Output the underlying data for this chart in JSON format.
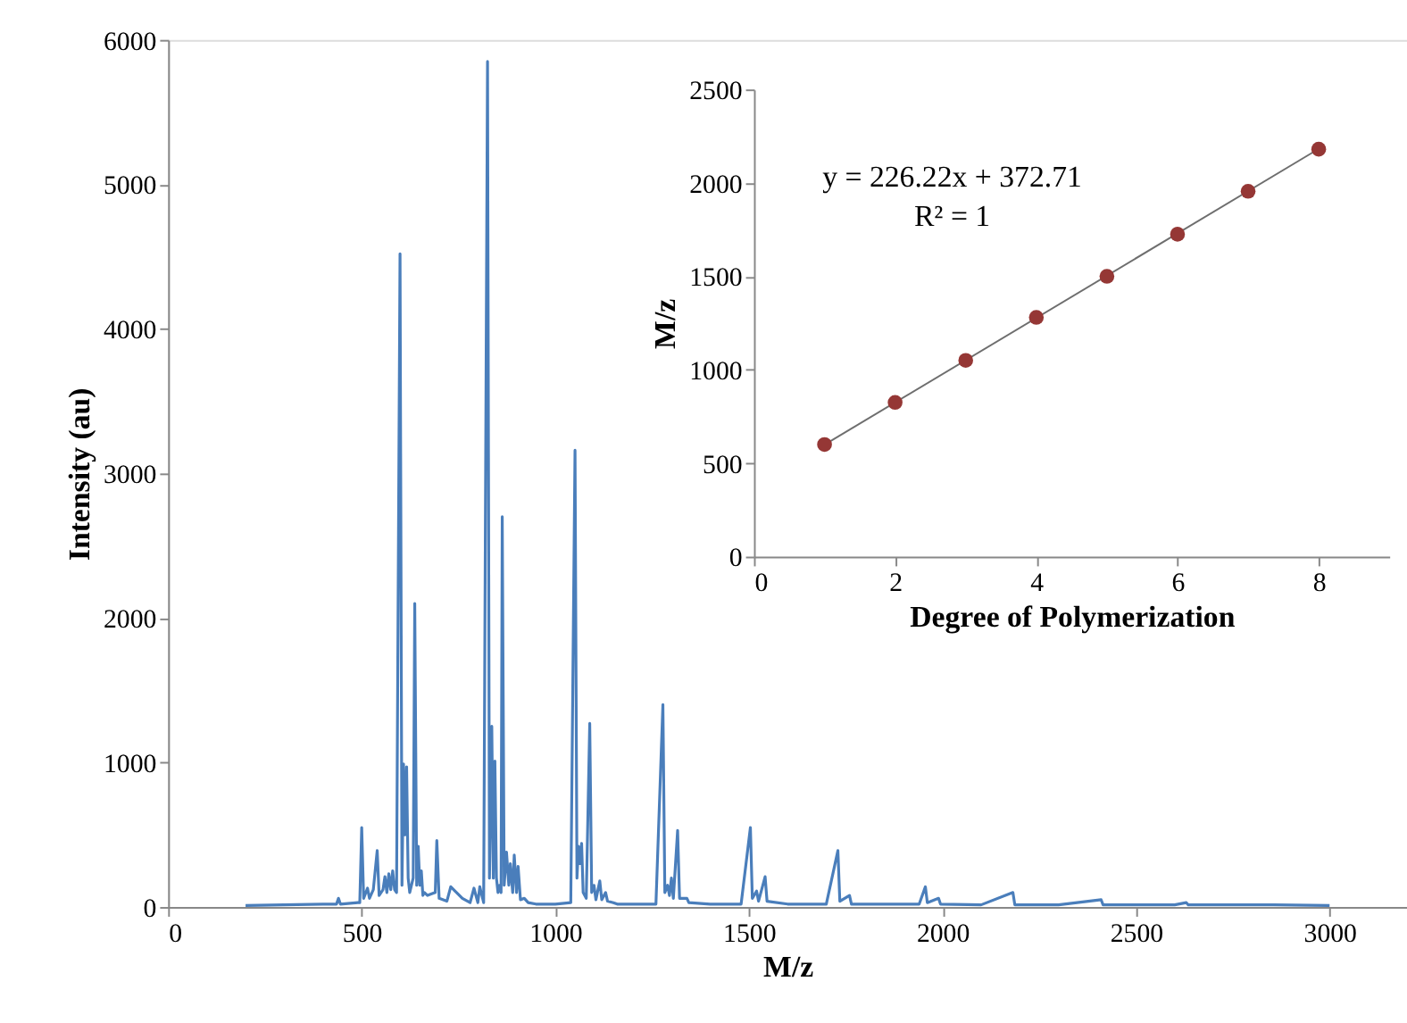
{
  "chart_data": [
    {
      "type": "line",
      "xlabel": "M/z",
      "ylabel": "Intensity (au)",
      "xlim": [
        0,
        3200
      ],
      "xticks": [
        0,
        500,
        1000,
        1500,
        2000,
        2500,
        3000
      ],
      "ylim": [
        0,
        6000
      ],
      "yticks": [
        0,
        1000,
        2000,
        3000,
        4000,
        5000,
        6000
      ],
      "grid": false,
      "line_style": "solid",
      "series": [
        {
          "color": "#4a7ebb",
          "x": [
            200,
            300,
            400,
            435,
            440,
            445,
            490,
            495,
            500,
            505,
            515,
            520,
            530,
            540,
            545,
            555,
            560,
            565,
            570,
            575,
            580,
            585,
            590,
            599,
            604,
            608,
            612,
            616,
            620,
            624,
            633,
            637,
            642,
            646,
            650,
            654,
            658,
            662,
            670,
            690,
            694,
            700,
            720,
            730,
            745,
            760,
            780,
            790,
            800,
            805,
            815,
            825,
            830,
            836,
            840,
            844,
            848,
            852,
            856,
            860,
            863,
            868,
            874,
            880,
            884,
            890,
            894,
            900,
            904,
            910,
            920,
            930,
            950,
            980,
            1000,
            1040,
            1051,
            1056,
            1060,
            1064,
            1068,
            1072,
            1080,
            1089,
            1094,
            1100,
            1105,
            1115,
            1120,
            1130,
            1135,
            1150,
            1160,
            1200,
            1260,
            1278,
            1283,
            1290,
            1295,
            1300,
            1305,
            1316,
            1321,
            1340,
            1345,
            1400,
            1480,
            1504,
            1509,
            1520,
            1525,
            1542,
            1547,
            1600,
            1700,
            1730,
            1735,
            1760,
            1765,
            1800,
            1940,
            1956,
            1961,
            1990,
            1995,
            2100,
            2182,
            2187,
            2300,
            2410,
            2415,
            2600,
            2630,
            2635,
            2850,
            2855,
            3000
          ],
          "values": [
            10,
            15,
            20,
            20,
            60,
            20,
            30,
            30,
            550,
            60,
            130,
            60,
            120,
            390,
            80,
            120,
            210,
            100,
            230,
            120,
            250,
            120,
            100,
            4520,
            150,
            990,
            500,
            970,
            200,
            100,
            200,
            2100,
            150,
            420,
            150,
            250,
            80,
            100,
            80,
            100,
            460,
            60,
            40,
            140,
            100,
            60,
            30,
            130,
            30,
            140,
            30,
            5850,
            200,
            1250,
            200,
            1010,
            200,
            100,
            150,
            100,
            2700,
            150,
            380,
            150,
            300,
            100,
            360,
            100,
            280,
            50,
            60,
            30,
            20,
            20,
            20,
            30,
            3160,
            200,
            420,
            300,
            440,
            100,
            60,
            1270,
            100,
            150,
            50,
            180,
            50,
            100,
            40,
            30,
            20,
            20,
            20,
            1400,
            100,
            150,
            80,
            200,
            60,
            530,
            60,
            60,
            30,
            20,
            20,
            550,
            60,
            110,
            40,
            210,
            40,
            20,
            20,
            390,
            40,
            80,
            20,
            20,
            20,
            140,
            30,
            60,
            20,
            15,
            100,
            15,
            15,
            50,
            15,
            15,
            30,
            15,
            15,
            15,
            10
          ]
        }
      ]
    },
    {
      "type": "scatter",
      "xlabel": "Degree of Polymerization",
      "ylabel": "M/z",
      "xlim": [
        0,
        9
      ],
      "xticks": [
        0,
        2,
        4,
        6,
        8
      ],
      "ylim": [
        0,
        2500
      ],
      "yticks": [
        0,
        500,
        1000,
        1500,
        2000,
        2500
      ],
      "grid": false,
      "series": [
        {
          "type": "scatter",
          "marker": "circle",
          "color": "#953735",
          "x": [
            1,
            2,
            3,
            4,
            5,
            6,
            7,
            8
          ],
          "values": [
            600,
            825,
            1050,
            1280,
            1500,
            1725,
            1955,
            2180
          ]
        },
        {
          "type": "line",
          "color": "#6e6e6e",
          "x": [
            1,
            8
          ],
          "values": [
            599,
            2182
          ]
        }
      ],
      "annotations": [
        "y = 226.22x + 372.71",
        "R² = 1"
      ]
    }
  ]
}
